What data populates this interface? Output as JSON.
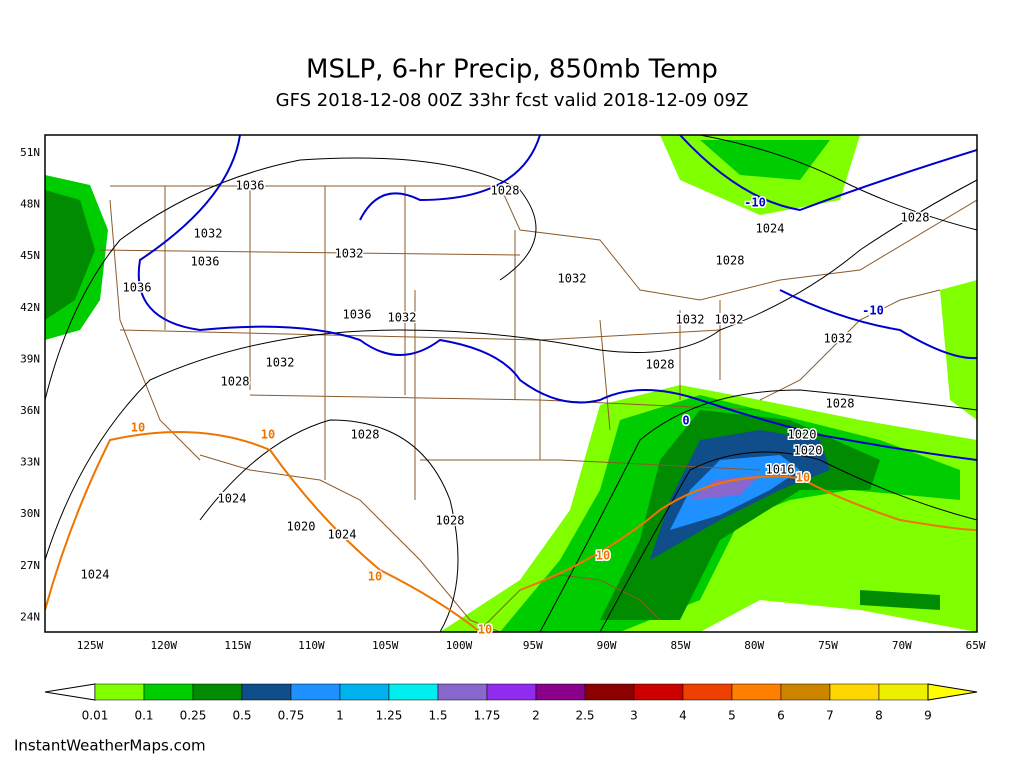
{
  "header": {
    "title": "MSLP, 6-hr Precip, 850mb Temp",
    "subtitle": "GFS 2018-12-08 00Z 33hr fcst valid 2018-12-09 09Z"
  },
  "map": {
    "lat_labels": [
      "51N",
      "48N",
      "45N",
      "42N",
      "39N",
      "36N",
      "33N",
      "30N",
      "27N",
      "24N"
    ],
    "lon_labels": [
      "125W",
      "120W",
      "115W",
      "110W",
      "105W",
      "100W",
      "95W",
      "90W",
      "85W",
      "80W",
      "75W",
      "70W",
      "65W"
    ],
    "pressure_labels": [
      1028,
      1032,
      1036,
      1036,
      1032,
      1036,
      1036,
      1032,
      1032,
      1032,
      1032,
      1032,
      1028,
      1028,
      1028,
      1024,
      1028,
      1028,
      1032,
      1028,
      1024,
      1020,
      1024,
      1028,
      1024,
      1020,
      1020,
      1016
    ],
    "temp_labels": [
      10,
      10,
      10,
      10,
      10,
      10,
      -10,
      -10,
      0
    ],
    "temp_label_colors": [
      "#ee7600",
      "#ee7600",
      "#ee7600",
      "#ee7600",
      "#ee7600",
      "#ee7600",
      "#0000cd",
      "#0000cd",
      "#0000cd"
    ]
  },
  "colorbar": {
    "labels": [
      0.01,
      0.1,
      0.25,
      0.5,
      0.75,
      1,
      1.25,
      1.5,
      1.75,
      2,
      2.5,
      3,
      4,
      5,
      6,
      7,
      8,
      9
    ],
    "colors": [
      "#7fff00",
      "#00cd00",
      "#008b00",
      "#104e8b",
      "#1e90ff",
      "#00b2ee",
      "#00eeee",
      "#8968cd",
      "#912cee",
      "#8b008b",
      "#8b0000",
      "#cd0000",
      "#ee4000",
      "#ff7f00",
      "#cd8500",
      "#ffd700",
      "#eeee00",
      "#ffff00"
    ]
  },
  "footer": "InstantWeatherMaps.com"
}
